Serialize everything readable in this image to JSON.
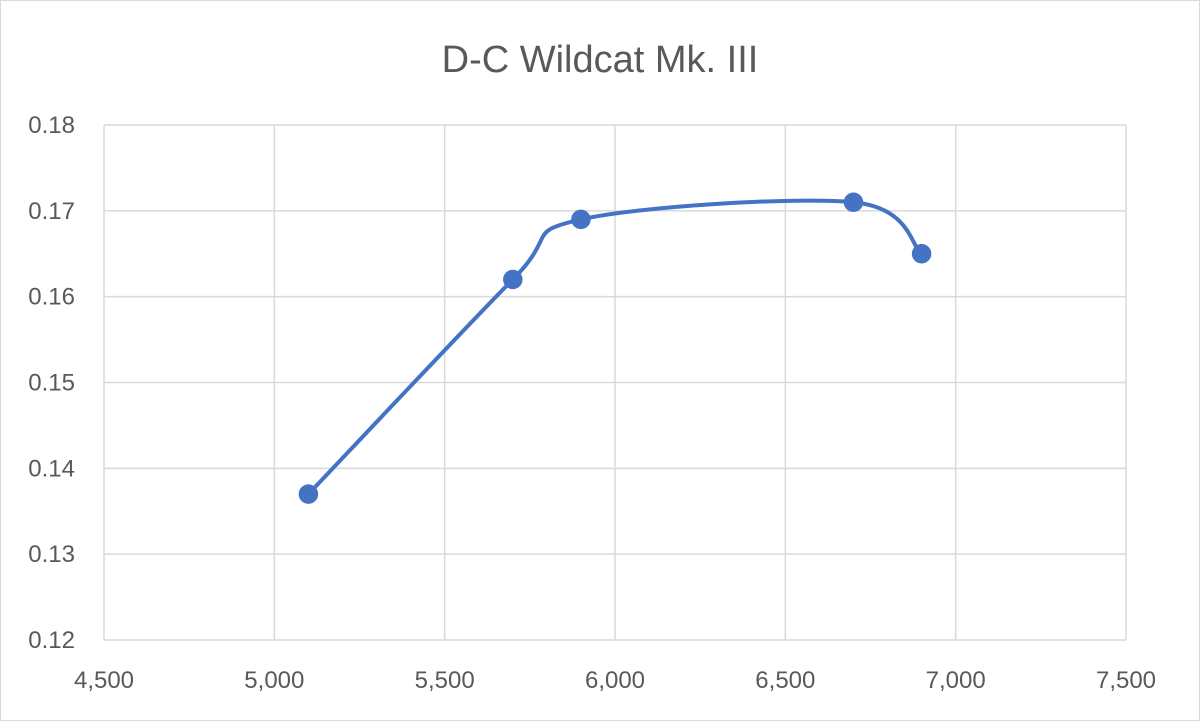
{
  "chart_data": {
    "type": "scatter",
    "style": "smooth-line-with-markers",
    "title": "D-C Wildcat Mk. III",
    "xlabel": "",
    "ylabel": "",
    "xlim": [
      4500,
      7500
    ],
    "ylim": [
      0.12,
      0.18
    ],
    "x_ticks": [
      "4,500",
      "5,000",
      "5,500",
      "6,000",
      "6,500",
      "7,000",
      "7,500"
    ],
    "y_ticks": [
      "0.12",
      "0.13",
      "0.14",
      "0.15",
      "0.16",
      "0.17",
      "0.18"
    ],
    "grid": true,
    "legend": "none",
    "series": [
      {
        "color": "#4472c4",
        "points": [
          {
            "x": 5100,
            "y": 0.137
          },
          {
            "x": 5700,
            "y": 0.162
          },
          {
            "x": 5900,
            "y": 0.169
          },
          {
            "x": 6700,
            "y": 0.171
          },
          {
            "x": 6900,
            "y": 0.165
          }
        ]
      }
    ],
    "colors": {
      "gridline": "#d9d9d9",
      "axis_text": "#595959",
      "title": "#595959"
    }
  }
}
